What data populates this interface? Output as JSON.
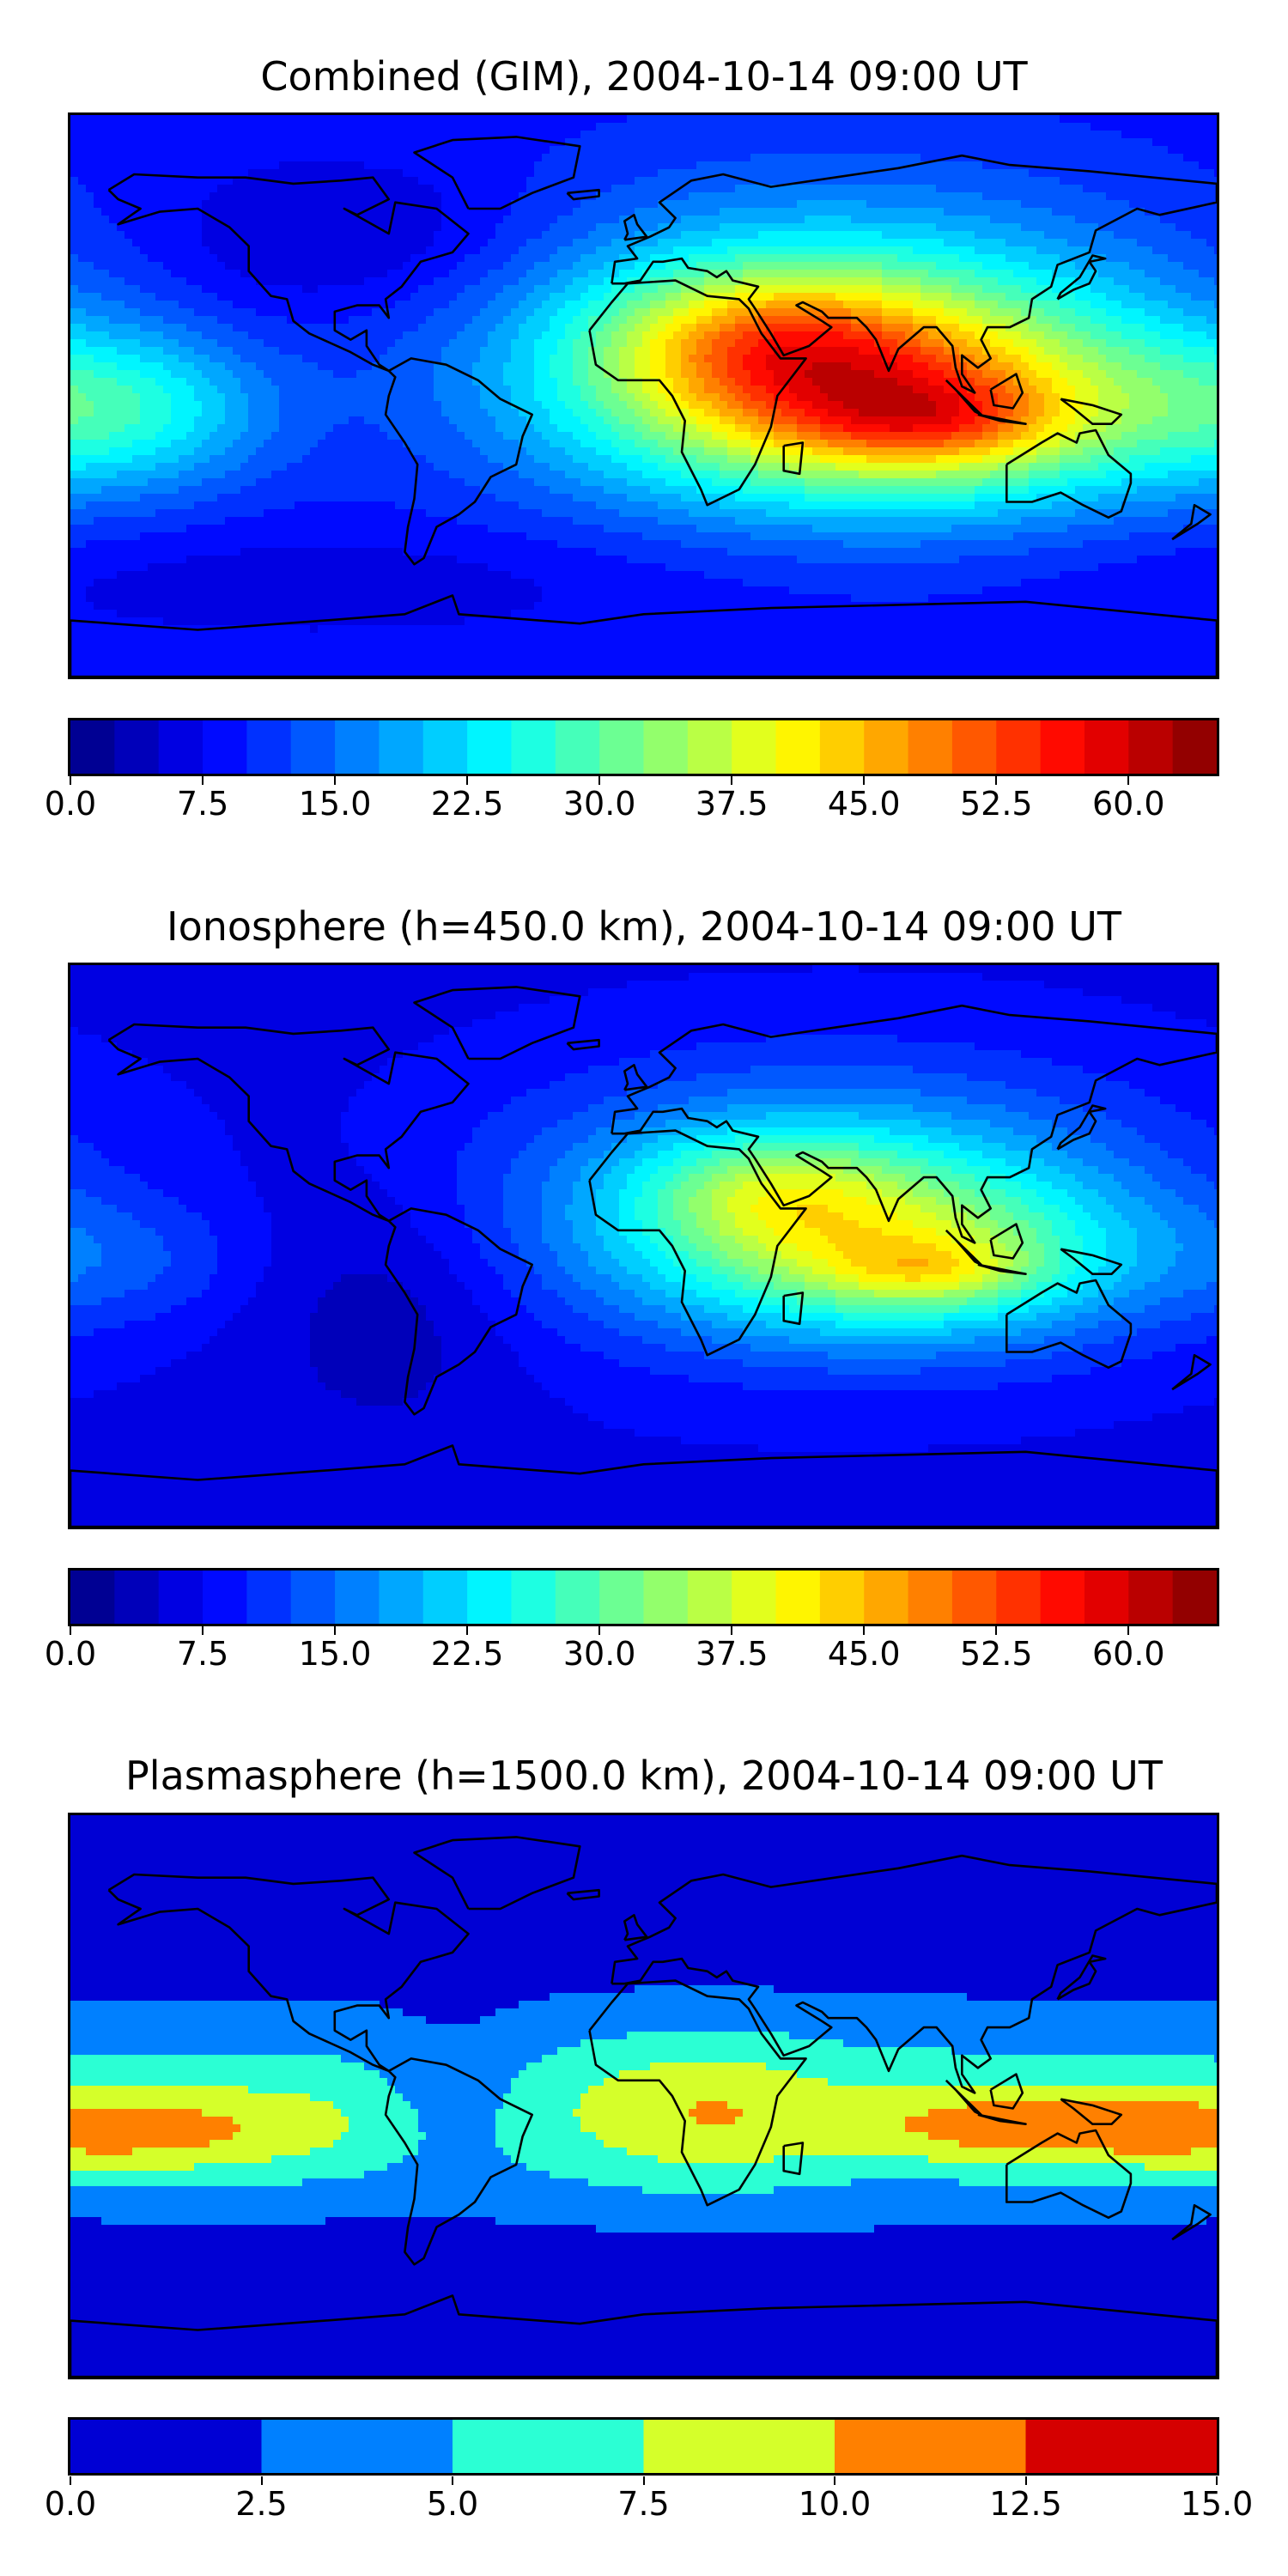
{
  "panels": [
    {
      "title": "Combined (GIM), 2004-10-14 09:00 UT",
      "colorbar": {
        "vmin": 0,
        "vmax": 65,
        "levels": 26,
        "colormap": "jet",
        "tick_values": [
          0,
          7.5,
          15,
          22.5,
          30,
          37.5,
          45,
          52.5,
          60
        ],
        "ticks": [
          "0.0",
          "7.5",
          "15.0",
          "22.5",
          "30.0",
          "37.5",
          "45.0",
          "52.5",
          "60.0"
        ]
      },
      "field": {
        "background": 9,
        "blobs": [
          {
            "lon": 60,
            "lat": 15,
            "rlon": 100,
            "rlat": 45,
            "amp": 24
          },
          {
            "lon": 85,
            "lat": -5,
            "rlon": 90,
            "rlat": 30,
            "amp": 22
          },
          {
            "lon": 40,
            "lat": 18,
            "rlon": 50,
            "rlat": 22,
            "amp": 14
          },
          {
            "lon": 90,
            "lat": -8,
            "rlon": 40,
            "rlat": 14,
            "amp": 10
          },
          {
            "lon": -160,
            "lat": -5,
            "rlon": 45,
            "rlat": 25,
            "amp": 12
          },
          {
            "lon": -90,
            "lat": 50,
            "rlon": 60,
            "rlat": 25,
            "amp": -5
          },
          {
            "lon": -100,
            "lat": -60,
            "rlon": 120,
            "rlat": 18,
            "amp": -3
          }
        ]
      }
    },
    {
      "title": "Ionosphere  (h=450.0 km), 2004-10-14 09:00 UT",
      "colorbar": {
        "vmin": 0,
        "vmax": 65,
        "levels": 26,
        "colormap": "jet",
        "tick_values": [
          0,
          7.5,
          15,
          22.5,
          30,
          37.5,
          45,
          52.5,
          60
        ],
        "ticks": [
          "0.0",
          "7.5",
          "15.0",
          "22.5",
          "30.0",
          "37.5",
          "45.0",
          "52.5",
          "60.0"
        ]
      },
      "field": {
        "background": 7,
        "blobs": [
          {
            "lon": 60,
            "lat": 12,
            "rlon": 95,
            "rlat": 40,
            "amp": 20
          },
          {
            "lon": 85,
            "lat": -5,
            "rlon": 70,
            "rlat": 25,
            "amp": 15
          },
          {
            "lon": 40,
            "lat": 18,
            "rlon": 40,
            "rlat": 18,
            "amp": 10
          },
          {
            "lon": 90,
            "lat": -8,
            "rlon": 30,
            "rlat": 10,
            "amp": 8
          },
          {
            "lon": -160,
            "lat": -5,
            "rlon": 40,
            "rlat": 20,
            "amp": 4
          },
          {
            "lon": -80,
            "lat": -20,
            "rlon": 40,
            "rlat": 40,
            "amp": -4
          }
        ]
      }
    },
    {
      "title": "Plasmasphere (h=1500.0 km), 2004-10-14 09:00 UT",
      "colorbar": {
        "vmin": 0,
        "vmax": 15,
        "levels": 6,
        "colormap": "jet",
        "tick_values": [
          0,
          2.5,
          5,
          7.5,
          10,
          12.5,
          15
        ],
        "ticks": [
          "0.0",
          "2.5",
          "5.0",
          "7.5",
          "10.0",
          "12.5",
          "15.0"
        ]
      },
      "field": {
        "background": 1,
        "blobs": [
          {
            "lon": 0,
            "lat": -5,
            "rlon": 400,
            "rlat": 32,
            "amp": 6
          },
          {
            "lon": -160,
            "lat": -12,
            "rlon": 60,
            "rlat": 14,
            "amp": 5
          },
          {
            "lon": 120,
            "lat": -10,
            "rlon": 55,
            "rlat": 12,
            "amp": 5
          },
          {
            "lon": 20,
            "lat": -5,
            "rlon": 35,
            "rlat": 25,
            "amp": 3
          },
          {
            "lon": -60,
            "lat": 0,
            "rlon": 25,
            "rlat": 25,
            "amp": -3
          },
          {
            "lon": -100,
            "lat": -55,
            "rlon": 80,
            "rlat": 10,
            "amp": -2
          }
        ]
      }
    }
  ]
}
